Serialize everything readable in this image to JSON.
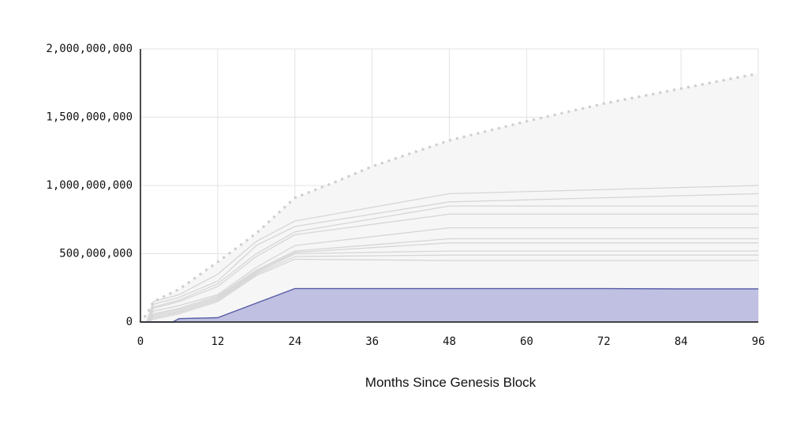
{
  "chart_data": {
    "type": "area",
    "xlabel": "Months Since Genesis Block",
    "ylabel": "",
    "xlim": [
      0,
      96
    ],
    "ylim": [
      0,
      2000000000
    ],
    "xticks": [
      0,
      12,
      24,
      36,
      48,
      60,
      72,
      84,
      96
    ],
    "yticks": [
      0,
      500000000,
      1000000000,
      1500000000,
      2000000000
    ],
    "ytick_labels": [
      "0",
      "500,000,000",
      "1,000,000,000",
      "1,500,000,000",
      "2,000,000,000"
    ],
    "xtick_labels": [
      "0",
      "12",
      "24",
      "36",
      "48",
      "60",
      "72",
      "84",
      "96"
    ],
    "grid": true,
    "colors": {
      "highlight_fill": "#c0c1e2",
      "highlight_line": "#5b5fa8",
      "background_series": "#d6d6d6",
      "total_supply_dots": "#d0d0d0",
      "total_area_fill": "#f6f6f6",
      "gridline": "#e3e3e3",
      "axis": "#111111"
    },
    "total_supply": {
      "style": "dotted",
      "x": [
        0,
        1,
        2,
        6,
        12,
        18,
        24,
        30,
        36,
        48,
        60,
        72,
        84,
        96
      ],
      "values": [
        0,
        60000000,
        150000000,
        240000000,
        440000000,
        650000000,
        910000000,
        1020000000,
        1140000000,
        1330000000,
        1470000000,
        1600000000,
        1710000000,
        1820000000
      ]
    },
    "highlighted_series": {
      "x": [
        0,
        5,
        6,
        12,
        24,
        48,
        60,
        72,
        84,
        96
      ],
      "values": [
        0,
        0,
        25000000,
        32000000,
        245000000,
        245000000,
        245000000,
        245000000,
        243000000,
        243000000
      ]
    },
    "background_series": [
      {
        "x": [
          1,
          2,
          6,
          12,
          18,
          24,
          48,
          96
        ],
        "values": [
          0,
          150000000,
          200000000,
          350000000,
          590000000,
          740000000,
          940000000,
          1000000000
        ]
      },
      {
        "x": [
          1,
          2,
          6,
          12,
          18,
          24,
          48,
          96
        ],
        "values": [
          0,
          130000000,
          180000000,
          300000000,
          560000000,
          700000000,
          880000000,
          940000000
        ]
      },
      {
        "x": [
          1,
          2,
          6,
          12,
          18,
          24,
          48,
          96
        ],
        "values": [
          0,
          110000000,
          160000000,
          280000000,
          500000000,
          660000000,
          850000000,
          850000000
        ]
      },
      {
        "x": [
          1,
          2,
          6,
          12,
          18,
          24,
          48,
          96
        ],
        "values": [
          0,
          100000000,
          150000000,
          260000000,
          480000000,
          640000000,
          790000000,
          790000000
        ]
      },
      {
        "x": [
          1,
          2,
          6,
          12,
          18,
          24,
          48,
          96
        ],
        "values": [
          0,
          80000000,
          120000000,
          200000000,
          400000000,
          560000000,
          690000000,
          690000000
        ]
      },
      {
        "x": [
          1,
          2,
          6,
          12,
          18,
          24,
          48,
          96
        ],
        "values": [
          0,
          60000000,
          100000000,
          190000000,
          380000000,
          520000000,
          610000000,
          610000000
        ]
      },
      {
        "x": [
          1,
          2,
          6,
          12,
          18,
          24,
          48,
          96
        ],
        "values": [
          0,
          50000000,
          90000000,
          180000000,
          370000000,
          510000000,
          580000000,
          580000000
        ]
      },
      {
        "x": [
          1,
          2,
          6,
          12,
          18,
          24,
          48,
          96
        ],
        "values": [
          0,
          40000000,
          80000000,
          170000000,
          360000000,
          500000000,
          520000000,
          520000000
        ]
      },
      {
        "x": [
          1,
          2,
          6,
          12,
          18,
          24,
          48,
          96
        ],
        "values": [
          0,
          30000000,
          70000000,
          160000000,
          350000000,
          480000000,
          490000000,
          490000000
        ]
      },
      {
        "x": [
          1,
          2,
          6,
          12,
          18,
          24,
          48,
          96
        ],
        "values": [
          0,
          20000000,
          60000000,
          150000000,
          340000000,
          460000000,
          450000000,
          450000000
        ]
      }
    ]
  }
}
